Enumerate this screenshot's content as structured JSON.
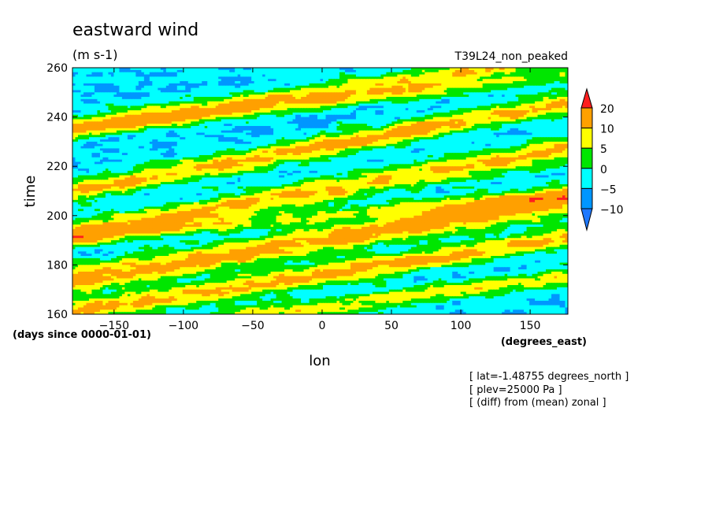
{
  "chart_data": {
    "type": "heatmap",
    "title": "eastward wind",
    "units": "(m s-1)",
    "experiment": "T39L24_non_peaked",
    "xlabel": "lon",
    "xunits": "(degrees_east)",
    "ylabel": "time",
    "yunits": "(days since 0000-01-01)",
    "xlim": [
      -180,
      177.2
    ],
    "ylim": [
      160,
      260
    ],
    "xticks": [
      -150,
      -100,
      -50,
      0,
      50,
      100,
      150
    ],
    "yticks": [
      160,
      180,
      200,
      220,
      240,
      260
    ],
    "colorbar": {
      "levels": [
        -10,
        -5,
        0,
        5,
        10,
        20
      ],
      "colors": [
        "#1e78ff",
        "#0096ff",
        "#00ffff",
        "#00e600",
        "#ffff00",
        "#ffa000",
        "#ff1e1e"
      ],
      "labels": [
        "20",
        "10",
        "5",
        "0",
        "−5",
        "−10"
      ]
    },
    "bands": [
      {
        "t0": 190,
        "slope": 0.09,
        "width": 4.0,
        "amp": 17
      },
      {
        "t0": 176,
        "slope": 0.085,
        "width": 3.2,
        "amp": 16
      },
      {
        "t0": 210,
        "slope": 0.095,
        "width": 3.5,
        "amp": 15
      },
      {
        "t0": 228,
        "slope": 0.1,
        "width": 3.2,
        "amp": 16
      },
      {
        "t0": 163,
        "slope": 0.07,
        "width": 2.6,
        "amp": 12
      },
      {
        "t0": 250,
        "slope": 0.08,
        "width": 3.0,
        "amp": 13
      },
      {
        "t0": 246,
        "slope": 0.06,
        "width": 2.2,
        "amp": 9
      },
      {
        "t0": 200,
        "slope": 0.05,
        "width": 2.4,
        "amp": 9
      }
    ]
  },
  "annotations": [
    "[ lat=-1.48755 degrees_north ]",
    "[ plev=25000 Pa ]",
    "[ (diff) from (mean) zonal ]"
  ]
}
